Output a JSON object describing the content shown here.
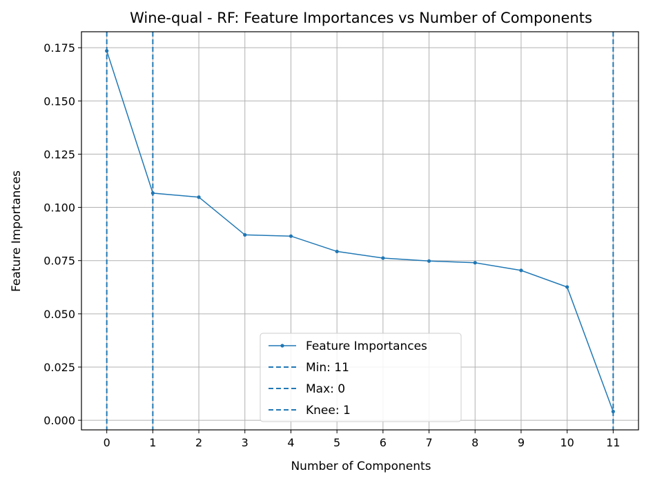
{
  "chart_data": {
    "type": "line",
    "title": "Wine-qual - RF: Feature Importances vs Number of Components",
    "xlabel": "Number of Components",
    "ylabel": "Feature Importances",
    "xlim": [
      -0.55,
      11.55
    ],
    "ylim": [
      -0.0045,
      0.1825
    ],
    "x_ticks": [
      0,
      1,
      2,
      3,
      4,
      5,
      6,
      7,
      8,
      9,
      10,
      11
    ],
    "y_ticks": [
      0.0,
      0.025,
      0.05,
      0.075,
      0.1,
      0.125,
      0.15,
      0.175
    ],
    "y_tick_labels": [
      "0.000",
      "0.025",
      "0.050",
      "0.075",
      "0.100",
      "0.125",
      "0.150",
      "0.175"
    ],
    "grid": true,
    "series": [
      {
        "name": "Feature Importances",
        "x": [
          0,
          1,
          2,
          3,
          4,
          5,
          6,
          7,
          8,
          9,
          10,
          11
        ],
        "values": [
          0.1735,
          0.1067,
          0.1048,
          0.0871,
          0.0865,
          0.0793,
          0.0762,
          0.0748,
          0.074,
          0.0704,
          0.0626,
          0.0041
        ],
        "color": "#1f77b4"
      }
    ],
    "vlines": [
      {
        "name": "Min: 11",
        "x": 11,
        "color": "#1f77b4",
        "style": "dashed"
      },
      {
        "name": "Max: 0",
        "x": 0,
        "color": "#1f77b4",
        "style": "dashed"
      },
      {
        "name": "Knee: 1",
        "x": 1,
        "color": "#1f77b4",
        "style": "dashed"
      }
    ],
    "legend_placement": "lower-center"
  }
}
